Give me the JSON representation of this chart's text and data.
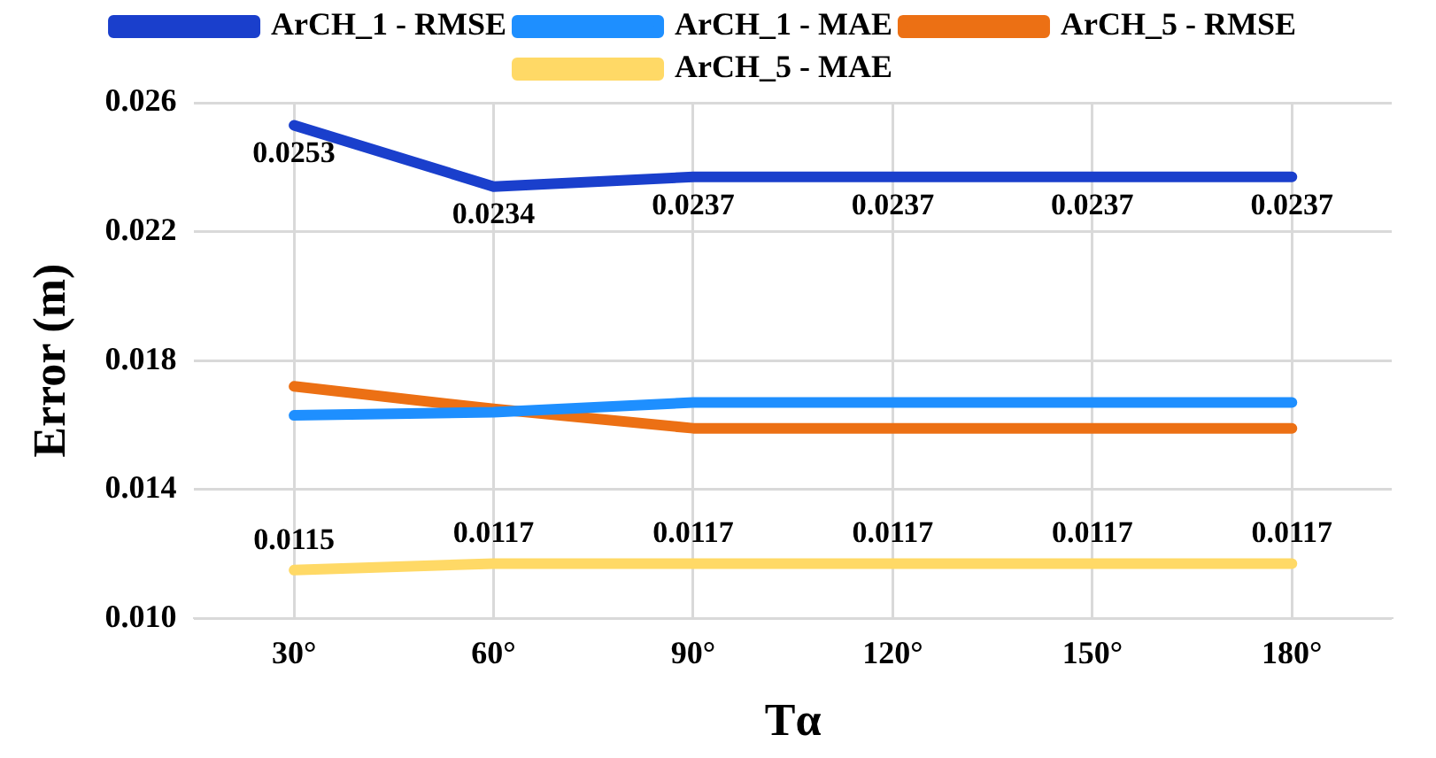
{
  "chart_data": {
    "type": "line",
    "xlabel": "Tα",
    "ylabel": "Error (m)",
    "categories": [
      "30°",
      "60°",
      "90°",
      "120°",
      "150°",
      "180°"
    ],
    "series": [
      {
        "name": "ArCH_1 - RMSE",
        "color": "#1a3fcc",
        "values": [
          0.0253,
          0.0234,
          0.0237,
          0.0237,
          0.0237,
          0.0237
        ],
        "value_labels": [
          "0.0253",
          "0.0234",
          "0.0237",
          "0.0237",
          "0.0237",
          "0.0237"
        ]
      },
      {
        "name": "ArCH_1 - MAE",
        "color": "#1e8fff",
        "values": [
          0.0163,
          0.0164,
          0.0167,
          0.0167,
          0.0167,
          0.0167
        ]
      },
      {
        "name": "ArCH_5 - RMSE",
        "color": "#ec7014",
        "values": [
          0.0172,
          0.0165,
          0.0159,
          0.0159,
          0.0159,
          0.0159
        ]
      },
      {
        "name": "ArCH_5 - MAE",
        "color": "#ffd966",
        "values": [
          0.0115,
          0.0117,
          0.0117,
          0.0117,
          0.0117,
          0.0117
        ],
        "value_labels": [
          "0.0115",
          "0.0117",
          "0.0117",
          "0.0117",
          "0.0117",
          "0.0117"
        ]
      }
    ],
    "ylim": [
      0.01,
      0.026
    ],
    "yticks": [
      {
        "value": 0.01,
        "label": "0.010"
      },
      {
        "value": 0.014,
        "label": "0.014"
      },
      {
        "value": 0.018,
        "label": "0.018"
      },
      {
        "value": 0.022,
        "label": "0.022"
      },
      {
        "value": 0.026,
        "label": "0.026"
      }
    ],
    "grid": true,
    "legend": "top",
    "marker": "none",
    "line_style": "solid"
  }
}
